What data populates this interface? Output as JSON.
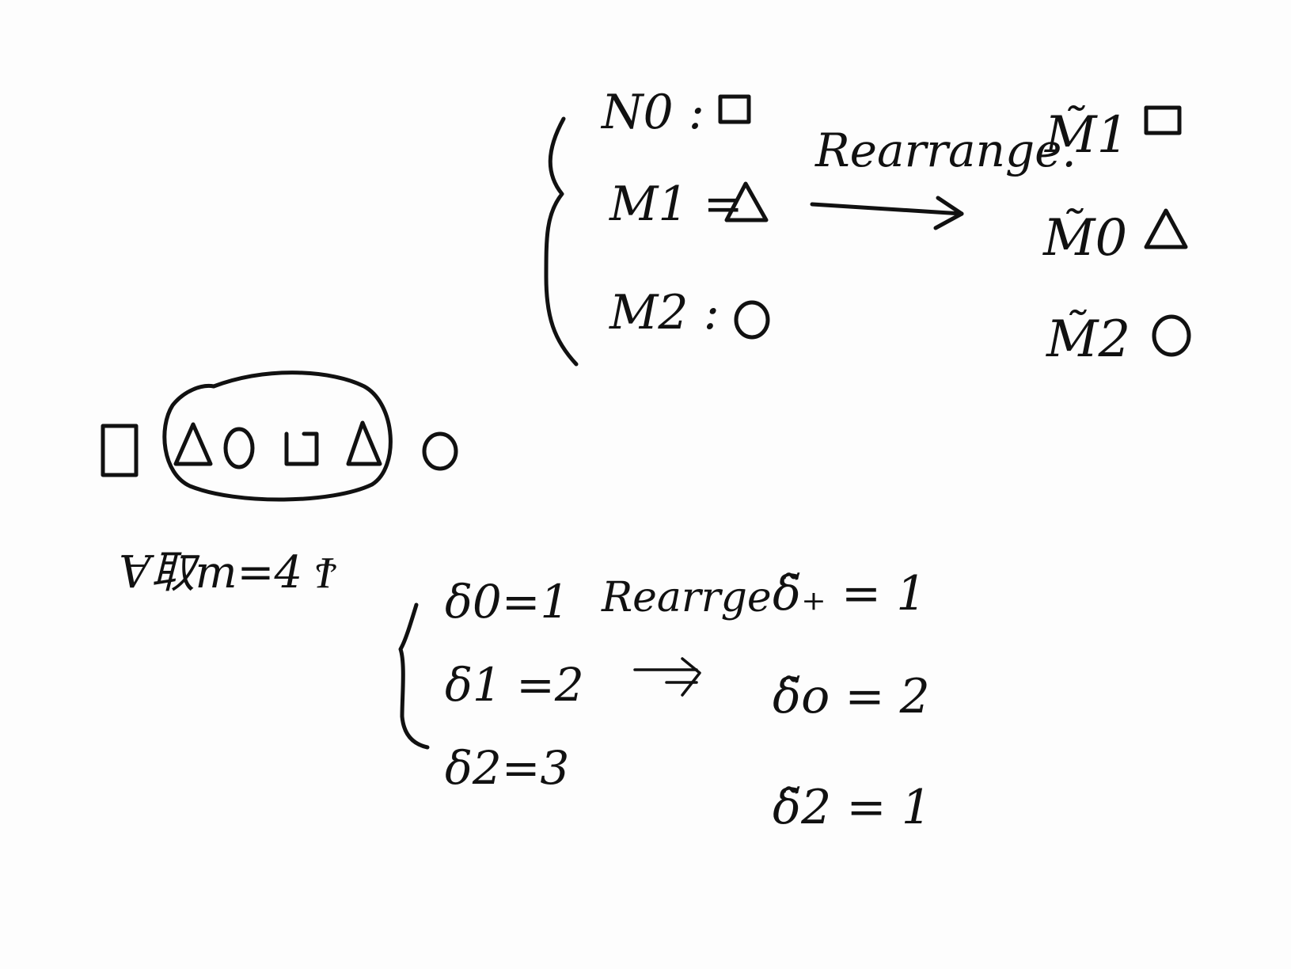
{
  "background_color": "#fdfdfd",
  "ink_color": "#111111",
  "top_block": {
    "left_entries": [
      {
        "label": "N0 : ",
        "shape": "square"
      },
      {
        "label": "M1 = ",
        "shape": "triangle"
      },
      {
        "label": "M2 : ",
        "shape": "circle"
      }
    ],
    "arrow_label": "Rearrange.",
    "right_entries": [
      {
        "label": "M̃1",
        "shape": "square"
      },
      {
        "label": "M̃0",
        "shape": "triangle"
      },
      {
        "label": "M̃2",
        "shape": "circle"
      }
    ]
  },
  "sequence": {
    "shapes": [
      "square",
      "triangle",
      "circle",
      "square",
      "triangle",
      "circle"
    ],
    "circled_range": "2-5"
  },
  "note": "Ɐ取m=4 Ϯ",
  "bottom_block": {
    "left_entries": [
      "δ0=1",
      "δ1 =2",
      "δ2=3"
    ],
    "arrow_label": "Rearrge",
    "arrow_symbol": "⇁",
    "right_entries": [
      "δ̃₊ = 1",
      "δ̃o = 2",
      "δ̃2 = 1"
    ]
  }
}
